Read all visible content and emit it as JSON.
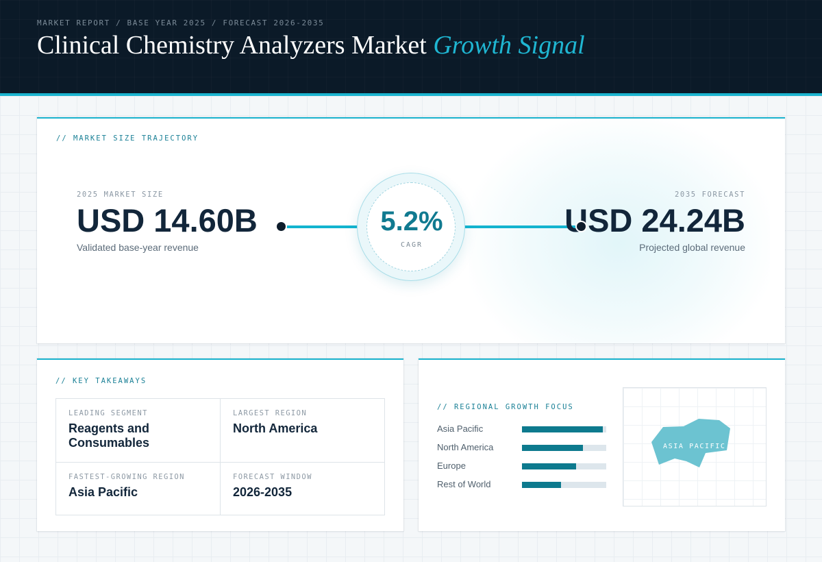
{
  "header": {
    "breadcrumb": "MARKET REPORT / BASE YEAR 2025 / FORECAST 2026-2035",
    "title_main": "Clinical Chemistry Analyzers Market",
    "title_accent": "Growth Signal"
  },
  "trajectory": {
    "section_label": "// MARKET SIZE TRAJECTORY",
    "base": {
      "label": "2025 MARKET SIZE",
      "value": "USD 14.60B",
      "note": "Validated base-year revenue"
    },
    "forecast": {
      "label": "2035 FORECAST",
      "value": "USD 24.24B",
      "note": "Projected global revenue"
    },
    "cagr": {
      "value": "5.2%",
      "label": "CAGR"
    }
  },
  "takeaways": {
    "section_label": "// KEY TAKEAWAYS",
    "items": [
      {
        "label": "LEADING SEGMENT",
        "value": "Reagents and Consumables"
      },
      {
        "label": "LARGEST REGION",
        "value": "North America"
      },
      {
        "label": "FASTEST-GROWING REGION",
        "value": "Asia Pacific"
      },
      {
        "label": "FORECAST WINDOW",
        "value": "2026-2035"
      }
    ]
  },
  "regional": {
    "section_label": "// REGIONAL GROWTH FOCUS",
    "bars": [
      {
        "name": "Asia Pacific",
        "level": 0.96
      },
      {
        "name": "North America",
        "level": 0.72
      },
      {
        "name": "Europe",
        "level": 0.64
      },
      {
        "name": "Rest of World",
        "level": 0.46
      }
    ],
    "map_label": "ASIA PACIFIC"
  },
  "colors": {
    "header_bg": "#0b1a28",
    "accent": "#1bb4cf",
    "bar_fill": "#0d7a8e",
    "map_shape": "#6cc3d1",
    "heading_text": "#12263a"
  }
}
